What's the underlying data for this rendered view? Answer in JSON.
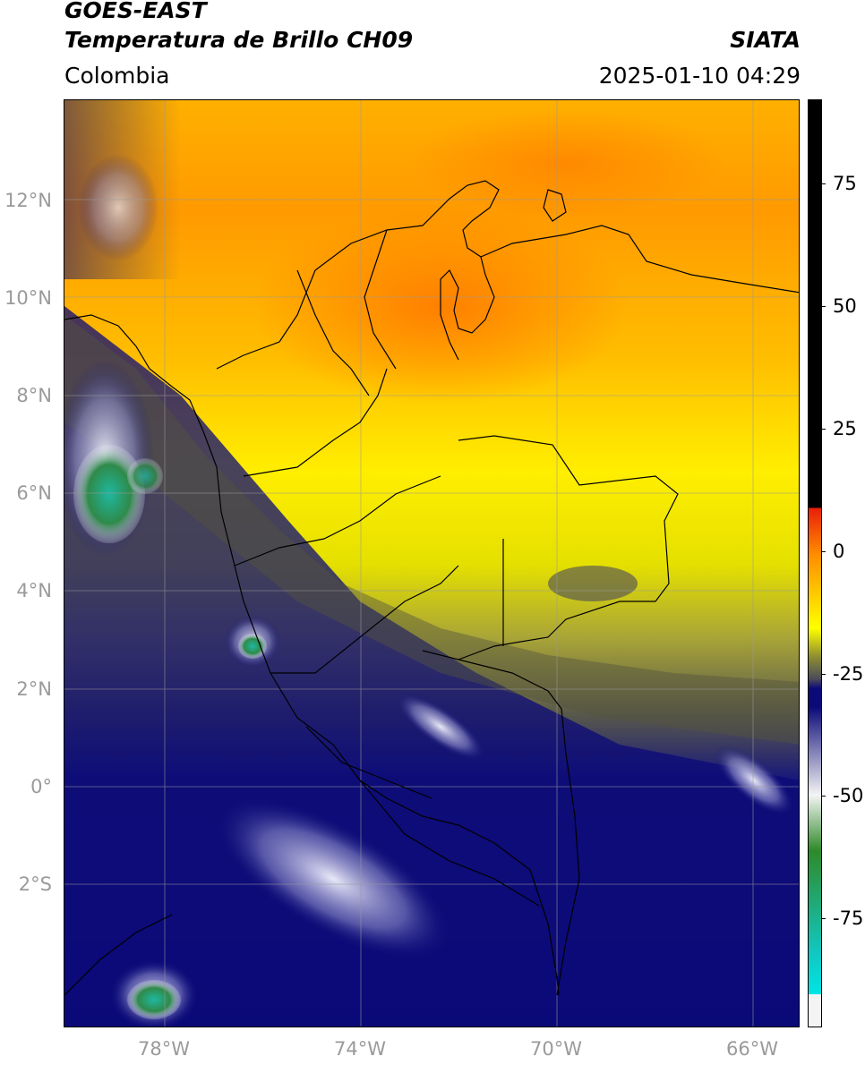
{
  "header": {
    "satellite": "GOES-EAST",
    "product": "Temperatura de Brillo CH09",
    "region": "Colombia",
    "agency": "SIATA",
    "datetime": "2025-01-10 04:29"
  },
  "map": {
    "lat_labels": [
      "12°N",
      "10°N",
      "8°N",
      "6°N",
      "4°N",
      "2°N",
      "0°",
      "2°S"
    ],
    "lon_labels": [
      "78°W",
      "74°W",
      "70°W",
      "66°W"
    ]
  },
  "colorbar": {
    "tick_labels": [
      "75",
      "50",
      "25",
      "0",
      "-25",
      "-50",
      "-75"
    ],
    "colors": {
      "black": "#000000",
      "red": "#e81e0a",
      "orange": "#ff8c00",
      "yellow": "#ffff00",
      "olive": "#909030",
      "gray": "#4a4a5a",
      "navy": "#0b0a78",
      "white": "#f4f4f4",
      "green": "#2f8a2a",
      "teal": "#12c7c0",
      "cyan": "#00e5e5"
    }
  }
}
